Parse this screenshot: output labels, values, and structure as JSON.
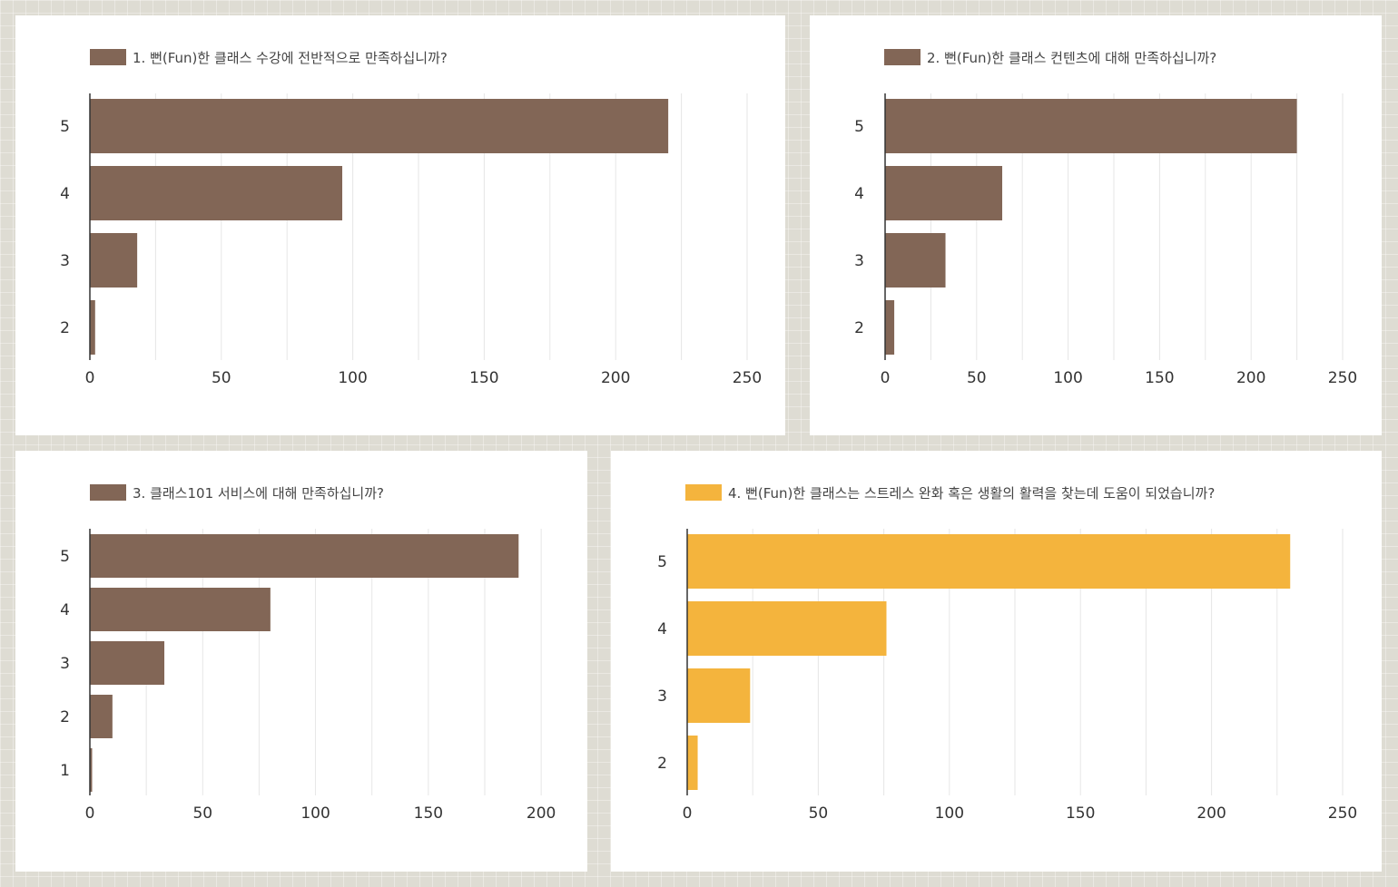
{
  "chart_data": [
    {
      "type": "bar",
      "orientation": "horizontal",
      "legend_label": "1. 뻔(Fun)한 클래스 수강에 전반적으로 만족하십니까?",
      "legend_position": "top-left",
      "categories": [
        "5",
        "4",
        "3",
        "2"
      ],
      "values": [
        220,
        96,
        18,
        2
      ],
      "xlim": [
        0,
        250
      ],
      "xticks": [
        0,
        50,
        100,
        150,
        200,
        250
      ],
      "grid": true,
      "color": "#826656"
    },
    {
      "type": "bar",
      "orientation": "horizontal",
      "legend_label": "2. 뻔(Fun)한 클래스 컨텐츠에 대해 만족하십니까?",
      "legend_position": "top-left",
      "categories": [
        "5",
        "4",
        "3",
        "2"
      ],
      "values": [
        225,
        64,
        33,
        5
      ],
      "xlim": [
        0,
        250
      ],
      "xticks": [
        0,
        50,
        100,
        150,
        200,
        250
      ],
      "grid": true,
      "color": "#826656"
    },
    {
      "type": "bar",
      "orientation": "horizontal",
      "legend_label": "3. 클래스101 서비스에 대해 만족하십니까?",
      "legend_position": "top-left",
      "categories": [
        "5",
        "4",
        "3",
        "2",
        "1"
      ],
      "values": [
        190,
        80,
        33,
        10,
        1
      ],
      "xlim": [
        0,
        210
      ],
      "xticks": [
        0,
        50,
        100,
        150,
        200
      ],
      "grid": true,
      "color": "#826656"
    },
    {
      "type": "bar",
      "orientation": "horizontal",
      "legend_label": "4. 뻔(Fun)한 클래스는 스트레스 완화 혹은 생활의 활력을 찾는데 도움이 되었습니까?",
      "legend_position": "top-left",
      "categories": [
        "5",
        "4",
        "3",
        "2"
      ],
      "values": [
        230,
        76,
        24,
        4
      ],
      "xlim": [
        0,
        250
      ],
      "xticks": [
        0,
        50,
        100,
        150,
        200,
        250
      ],
      "grid": true,
      "color": "#f4b43d"
    }
  ]
}
